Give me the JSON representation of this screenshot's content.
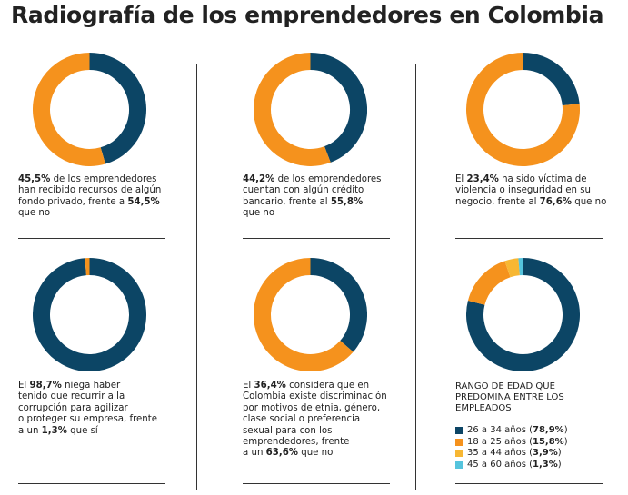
{
  "title": "Radiografía de los emprendedores en Colombia",
  "colors": {
    "dark": "#0c4565",
    "orange": "#f5921d",
    "light_orange": "#f7b733",
    "cyan": "#55c4dd"
  },
  "chart_data": [
    {
      "type": "pie",
      "labels": [
        "Han recibido recursos de algún fondo privado",
        "No"
      ],
      "values": [
        45.5,
        54.5
      ],
      "colors": [
        "#0c4565",
        "#f5921d"
      ],
      "caption": [
        {
          "t": "45,5%",
          "b": true
        },
        {
          "t": " de los emprendedores\nhan recibido recursos de algún\nfondo privado, frente a "
        },
        {
          "t": "54,5%",
          "b": true
        },
        {
          "t": "\nque no"
        }
      ]
    },
    {
      "type": "pie",
      "labels": [
        "Cuentan con algún crédito bancario",
        "No"
      ],
      "values": [
        44.2,
        55.8
      ],
      "colors": [
        "#0c4565",
        "#f5921d"
      ],
      "caption": [
        {
          "t": "44,2%",
          "b": true
        },
        {
          "t": " de los emprendedores\ncuentan con algún crédito\nbancario, frente al "
        },
        {
          "t": "55,8%",
          "b": true
        },
        {
          "t": "\nque no"
        }
      ]
    },
    {
      "type": "pie",
      "labels": [
        "Ha sido víctima de violencia o inseguridad en su negocio",
        "No"
      ],
      "values": [
        23.4,
        76.6
      ],
      "colors": [
        "#0c4565",
        "#f5921d"
      ],
      "caption": [
        {
          "t": "El "
        },
        {
          "t": "23,4%",
          "b": true
        },
        {
          "t": " ha sido víctima de\nviolencia o inseguridad en su\nnegocio, frente al "
        },
        {
          "t": "76,6%",
          "b": true
        },
        {
          "t": " que no"
        }
      ]
    },
    {
      "type": "pie",
      "labels": [
        "Niega haber tenido que recurrir a la corrupción",
        "Sí"
      ],
      "values": [
        98.7,
        1.3
      ],
      "colors": [
        "#0c4565",
        "#f5921d"
      ],
      "caption": [
        {
          "t": "El "
        },
        {
          "t": "98,7%",
          "b": true
        },
        {
          "t": " niega haber\ntenido que recurrir a la\ncorrupción para agilizar\no proteger su empresa, frente\na un "
        },
        {
          "t": "1,3%",
          "b": true
        },
        {
          "t": " que sí"
        }
      ]
    },
    {
      "type": "pie",
      "labels": [
        "Considera que existe discriminación",
        "No"
      ],
      "values": [
        36.4,
        63.6
      ],
      "colors": [
        "#0c4565",
        "#f5921d"
      ],
      "caption": [
        {
          "t": "El "
        },
        {
          "t": "36,4%",
          "b": true
        },
        {
          "t": " considera que en\nColombia existe discriminación\npor motivos de etnia, género,\nclase social o preferencia\nsexual para con los\nemprendedores, frente\na un "
        },
        {
          "t": "63,6%",
          "b": true
        },
        {
          "t": " que no"
        }
      ]
    },
    {
      "type": "pie",
      "labels": [
        "26 a 34 años",
        "18 a 25 años",
        "35 a 44 años",
        "45 a 60 años"
      ],
      "values": [
        78.9,
        15.8,
        3.9,
        1.3
      ],
      "colors": [
        "#0c4565",
        "#f5921d",
        "#f7b733",
        "#55c4dd"
      ],
      "legend_title": "RANGO DE EDAD QUE PREDOMINA ENTRE LOS EMPLEADOS",
      "legend": [
        {
          "label": "26 a 34 años (",
          "value": "78,9%",
          "end": ")"
        },
        {
          "label": "18 a 25 años (",
          "value": "15,8%",
          "end": ")"
        },
        {
          "label": "35 a 44 años (",
          "value": "3,9%",
          "end": ")"
        },
        {
          "label": "45 a 60 años (",
          "value": "1,3%",
          "end": ")"
        }
      ]
    }
  ]
}
